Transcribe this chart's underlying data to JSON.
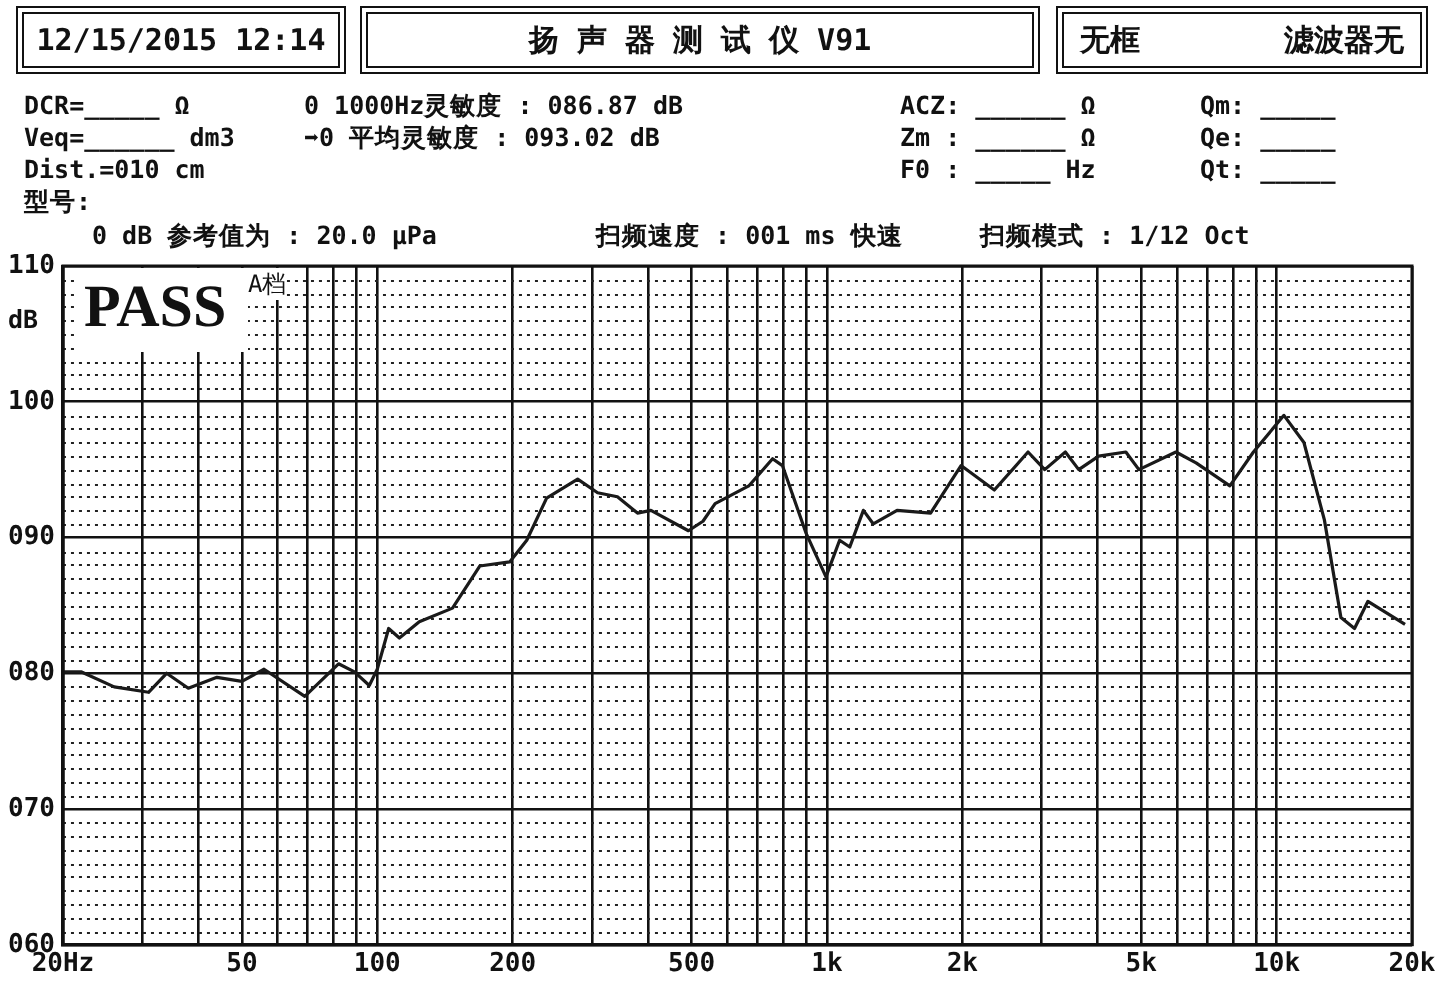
{
  "chart_data": {
    "type": "line",
    "title": "扬 声 器 测 试 仪  V91",
    "ylabel": "dB",
    "log": "x",
    "grid": true,
    "legend": false,
    "marker": "none",
    "line_style": "solid",
    "x": [
      20,
      22,
      26,
      31,
      34,
      38,
      44,
      50,
      56,
      69,
      82,
      89,
      96,
      100,
      106,
      112,
      124,
      147,
      169,
      197,
      215,
      238,
      279,
      309,
      342,
      379,
      406,
      492,
      530,
      564,
      670,
      757,
      796,
      899,
      995,
      1067,
      1124,
      1205,
      1268,
      1432,
      1700,
      1987,
      2356,
      2800,
      3050,
      3390,
      3630,
      4020,
      4620,
      4940,
      5970,
      6620,
      7870,
      8880,
      10380,
      11500,
      12770,
      13900,
      14900,
      15960,
      19300
    ],
    "series": [
      {
        "color": "#1a1a1a",
        "values": [
          80.1,
          80.1,
          79.0,
          78.6,
          80.0,
          78.9,
          79.7,
          79.4,
          80.3,
          78.3,
          80.7,
          80.1,
          79.1,
          80.3,
          83.3,
          82.6,
          83.8,
          84.8,
          87.9,
          88.2,
          89.8,
          92.9,
          94.3,
          93.3,
          93.0,
          91.8,
          92.0,
          90.5,
          91.2,
          92.5,
          93.8,
          95.8,
          95.3,
          90.3,
          87.1,
          89.8,
          89.3,
          92.0,
          91.0,
          92.0,
          91.8,
          95.3,
          93.5,
          96.3,
          95.0,
          96.3,
          95.0,
          96.0,
          96.3,
          95.0,
          96.3,
          95.5,
          93.8,
          96.3,
          99.0,
          97.0,
          91.3,
          84.1,
          83.3,
          85.3,
          83.6
        ]
      }
    ],
    "xlim": [
      20,
      20000
    ],
    "xticks": [
      {
        "value": 20,
        "label": "20Hz"
      },
      {
        "value": 30,
        "label": null
      },
      {
        "value": 40,
        "label": null
      },
      50,
      {
        "value": 60,
        "label": null
      },
      {
        "value": 70,
        "label": null
      },
      {
        "value": 80,
        "label": null
      },
      {
        "value": 90,
        "label": null
      },
      100,
      200,
      {
        "value": 300,
        "label": null
      },
      {
        "value": 400,
        "label": null
      },
      500,
      {
        "value": 600,
        "label": null
      },
      {
        "value": 700,
        "label": null
      },
      {
        "value": 800,
        "label": null
      },
      {
        "value": 900,
        "label": null
      },
      {
        "value": 1000,
        "label": "1k"
      },
      {
        "value": 2000,
        "label": "2k"
      },
      {
        "value": 3000,
        "label": null
      },
      {
        "value": 4000,
        "label": null
      },
      {
        "value": 5000,
        "label": "5k"
      },
      {
        "value": 6000,
        "label": null
      },
      {
        "value": 7000,
        "label": null
      },
      {
        "value": 8000,
        "label": null
      },
      {
        "value": 9000,
        "label": null
      },
      {
        "value": 10000,
        "label": "10k"
      },
      {
        "value": 20000,
        "label": "20k"
      }
    ],
    "ylim": [
      60,
      110
    ],
    "yticks": [
      {
        "value": 60,
        "label": "060"
      },
      {
        "value": 70,
        "label": "070"
      },
      {
        "value": 80,
        "label": "080"
      },
      {
        "value": 90,
        "label": "090"
      },
      {
        "value": 100,
        "label": "100"
      },
      {
        "value": 110,
        "label": "110"
      }
    ],
    "annotations": [
      "12/15/2015 12:14",
      "无框",
      "滤波器无",
      "DCR=_____ Ω",
      "0 1000Hz灵敏度 : 086.87 dB",
      "Veq=______ dm3",
      "➡0 平均灵敏度 : 093.02 dB",
      "Dist.=010 cm",
      "型号:",
      "0 dB 参考值为 : 20.0 μPa",
      "扫频速度 : 001 ms 快速",
      "扫频模式 : 1/12 Oct",
      "ACZ: ______ Ω",
      "Zm : ______ Ω",
      "F0 : _____ Hz",
      "Qm: _____",
      "Qe: _____",
      "Qt: _____",
      "PASS",
      "A档"
    ]
  }
}
